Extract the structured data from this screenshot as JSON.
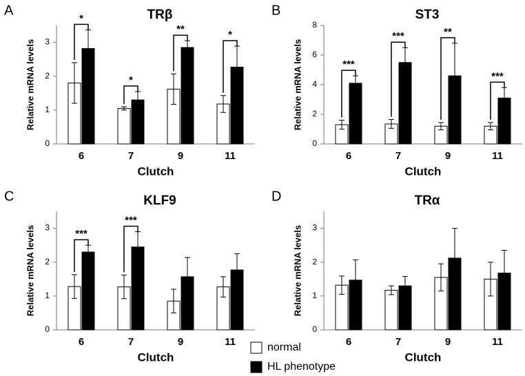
{
  "legend": [
    {
      "name": "normal",
      "color": "#ffffff"
    },
    {
      "name": "HL phenotype",
      "color": "#000000"
    }
  ],
  "chart_data": [
    {
      "type": "bar",
      "panel": "A",
      "title": "TRβ",
      "xlabel": "Clutch",
      "ylabel": "Relative mRNA levels",
      "categories": [
        "6",
        "7",
        "9",
        "11"
      ],
      "ylim": [
        0,
        3.5
      ],
      "yticks": [
        0,
        1,
        2,
        3
      ],
      "series": [
        {
          "values": [
            1.8,
            1.05,
            1.62,
            1.18
          ],
          "errors": [
            0.6,
            0.05,
            0.45,
            0.25
          ]
        },
        {
          "values": [
            2.82,
            1.3,
            2.85,
            2.27
          ],
          "errors": [
            0.55,
            0.25,
            0.2,
            0.62
          ]
        }
      ],
      "significance": [
        "*",
        "*",
        "**",
        "*"
      ]
    },
    {
      "type": "bar",
      "panel": "B",
      "title": "ST3",
      "xlabel": "Clutch",
      "ylabel": "Relative mRNA levels",
      "categories": [
        "6",
        "7",
        "9",
        "11"
      ],
      "ylim": [
        0,
        8
      ],
      "yticks": [
        0,
        2,
        4,
        6,
        8
      ],
      "series": [
        {
          "values": [
            1.3,
            1.35,
            1.2,
            1.2
          ],
          "errors": [
            0.3,
            0.3,
            0.25,
            0.25
          ]
        },
        {
          "values": [
            4.1,
            5.5,
            4.6,
            3.1
          ],
          "errors": [
            0.5,
            1.0,
            2.2,
            0.7
          ]
        }
      ],
      "significance": [
        "***",
        "***",
        "**",
        "***"
      ]
    },
    {
      "type": "bar",
      "panel": "C",
      "title": "KLF9",
      "xlabel": "Clutch",
      "ylabel": "Relative mRNA levels",
      "categories": [
        "6",
        "7",
        "9",
        "11"
      ],
      "ylim": [
        0,
        3.5
      ],
      "yticks": [
        0,
        1,
        2,
        3
      ],
      "series": [
        {
          "values": [
            1.28,
            1.27,
            0.85,
            1.27
          ],
          "errors": [
            0.35,
            0.35,
            0.35,
            0.3
          ]
        },
        {
          "values": [
            2.3,
            2.45,
            1.57,
            1.77
          ],
          "errors": [
            0.2,
            0.45,
            0.57,
            0.48
          ]
        }
      ],
      "significance": [
        "***",
        "***",
        null,
        null
      ]
    },
    {
      "type": "bar",
      "panel": "D",
      "title": "TRα",
      "xlabel": "Clutch",
      "ylabel": "Relative mRNA levels",
      "categories": [
        "6",
        "7",
        "9",
        "11"
      ],
      "ylim": [
        0,
        3.5
      ],
      "yticks": [
        0,
        1,
        2,
        3
      ],
      "series": [
        {
          "values": [
            1.32,
            1.17,
            1.55,
            1.5
          ],
          "errors": [
            0.27,
            0.13,
            0.4,
            0.5
          ]
        },
        {
          "values": [
            1.47,
            1.3,
            2.12,
            1.68
          ],
          "errors": [
            0.6,
            0.28,
            0.88,
            0.67
          ]
        }
      ]
    }
  ]
}
